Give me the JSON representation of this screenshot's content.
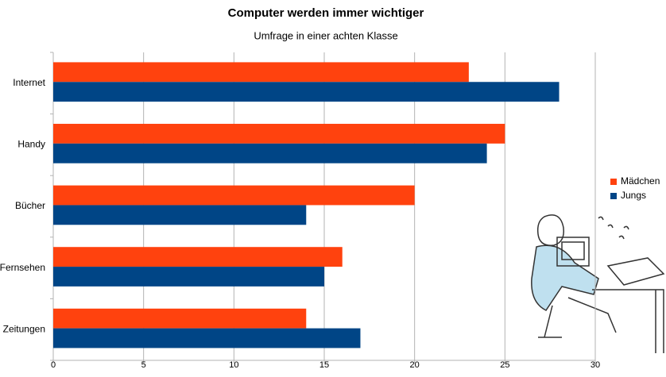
{
  "chart_data": {
    "type": "bar",
    "orientation": "horizontal",
    "title": "Computer werden immer wichtiger",
    "subtitle": "Umfrage in einer achten Klasse",
    "categories": [
      "Internet",
      "Handy",
      "Bücher",
      "Fernsehen",
      "Zeitungen"
    ],
    "series": [
      {
        "name": "Mädchen",
        "color": "#ff420e",
        "values": [
          23,
          25,
          20,
          16,
          14
        ]
      },
      {
        "name": "Jungs",
        "color": "#004586",
        "values": [
          28,
          24,
          14,
          15,
          17
        ]
      }
    ],
    "xlim": [
      0,
      30
    ],
    "xticks": [
      0,
      5,
      10,
      15,
      20,
      25,
      30
    ],
    "grid": true,
    "legend": "right"
  }
}
